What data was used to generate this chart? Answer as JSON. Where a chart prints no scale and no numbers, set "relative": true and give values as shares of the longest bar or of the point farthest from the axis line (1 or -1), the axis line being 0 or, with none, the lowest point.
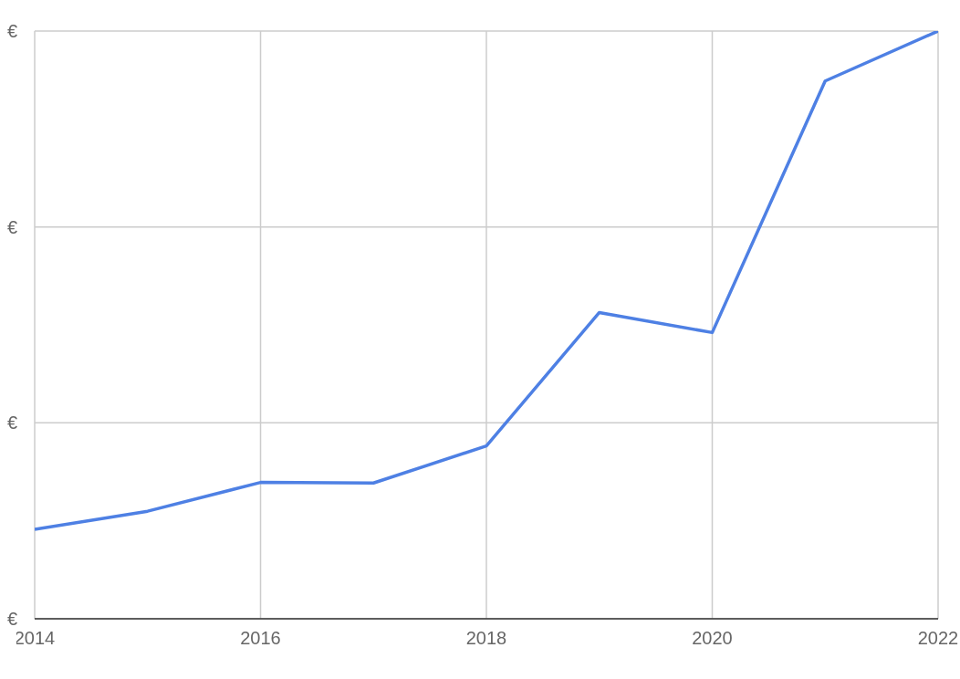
{
  "chart_data": {
    "type": "line",
    "relative": true,
    "x": [
      2014,
      2015,
      2016,
      2017,
      2018,
      2019,
      2020,
      2021,
      2022
    ],
    "xlim": [
      2014,
      2022
    ],
    "xticks": [
      2014,
      2016,
      2018,
      2020,
      2022
    ],
    "annotations": [
      "€",
      "€",
      "€",
      "€"
    ],
    "series": [
      {
        "color": "#4e80e4",
        "values": [
          0.152,
          0.183,
          0.232,
          0.231,
          0.294,
          0.521,
          0.487,
          0.915,
          1.0
        ]
      }
    ],
    "grid": true,
    "legend": false,
    "marker": "none",
    "line_style": "solid"
  }
}
